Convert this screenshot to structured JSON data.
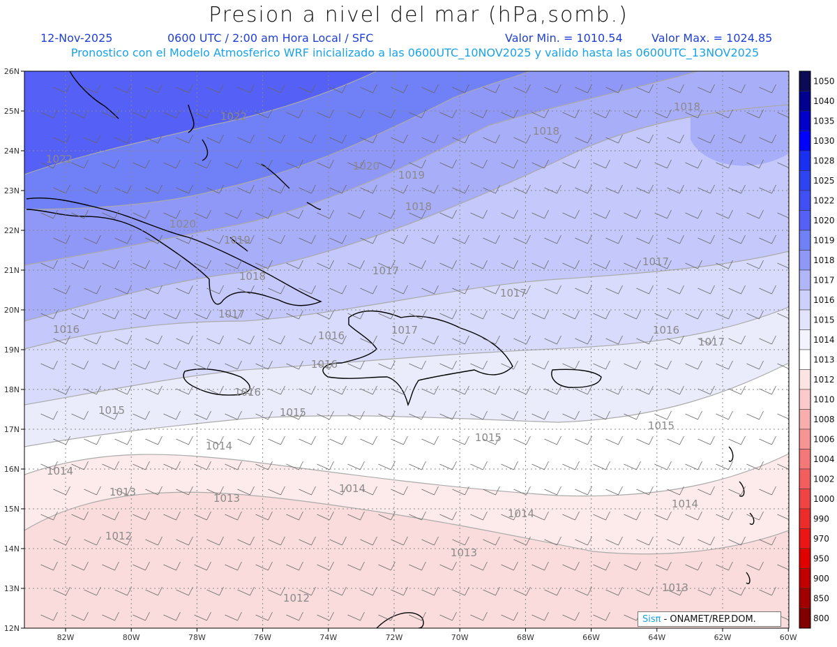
{
  "header": {
    "title": "Presion a nivel del mar (hPa,somb.)",
    "date": "12-Nov-2025",
    "time_info": "0600 UTC / 2:00 am Hora Local / SFC",
    "min_value": "Valor Min. = 1010.54",
    "max_value": "Valor Max. = 1024.85",
    "description": "Pronostico con el Modelo Atmosferico WRF inicializado a las 0600UTC_10NOV2025 y valido hasta las  0600UTC_13NOV2025"
  },
  "axes": {
    "lat_labels": [
      "26N",
      "25N",
      "24N",
      "23N",
      "22N",
      "21N",
      "20N",
      "19N",
      "18N",
      "17N",
      "16N",
      "15N",
      "14N",
      "13N",
      "12N"
    ],
    "lon_labels": [
      "82W",
      "80W",
      "78W",
      "76W",
      "74W",
      "72W",
      "70W",
      "68W",
      "66W",
      "64W",
      "62W",
      "60W"
    ]
  },
  "colorbar": {
    "levels": [
      "1050",
      "1040",
      "1035",
      "1030",
      "1028",
      "1025",
      "1022",
      "1020",
      "1019",
      "1018",
      "1017",
      "1016",
      "1015",
      "1014",
      "1013",
      "1012",
      "1010",
      "1008",
      "1006",
      "1004",
      "1002",
      "1000",
      "990",
      "970",
      "950",
      "900",
      "850",
      "800"
    ],
    "colors": [
      "#0a0a55",
      "#00008e",
      "#0000c8",
      "#0000ff",
      "#1a30f0",
      "#2e44f2",
      "#4050f4",
      "#5560f6",
      "#7080f6",
      "#9098f7",
      "#b0b6f8",
      "#ccd0fa",
      "#e2e4fb",
      "#f2f3fd",
      "#ffffff",
      "#fde4e4",
      "#fccaca",
      "#f9aeae",
      "#f79494",
      "#f47878",
      "#f25e5e",
      "#ef4444",
      "#ec2b2b",
      "#ea1515",
      "#e00000",
      "#c00000",
      "#a00000",
      "#800000"
    ]
  },
  "contours": [
    {
      "label": "1022",
      "color": "#5560f6"
    },
    {
      "label": "1020",
      "color": "#7080f6"
    },
    {
      "label": "1019",
      "color": "#9098f7"
    },
    {
      "label": "1018",
      "color": "#a8aef8"
    },
    {
      "label": "1017",
      "color": "#c4c8fa"
    },
    {
      "label": "1016",
      "color": "#d8dbfb"
    },
    {
      "label": "1015",
      "color": "#eaecfc"
    },
    {
      "label": "1014",
      "color": "#ffffff"
    },
    {
      "label": "1013",
      "color": "#fdeaea"
    },
    {
      "label": "1012",
      "color": "#fbdcdc"
    }
  ],
  "contour_labels": [
    {
      "text": "1022"
    },
    {
      "text": "1022"
    },
    {
      "text": "1020"
    },
    {
      "text": "1020"
    },
    {
      "text": "1019"
    },
    {
      "text": "1019"
    },
    {
      "text": "1018"
    },
    {
      "text": "1018"
    },
    {
      "text": "1018"
    },
    {
      "text": "1018"
    },
    {
      "text": "1017"
    },
    {
      "text": "1017"
    },
    {
      "text": "1017"
    },
    {
      "text": "1017"
    },
    {
      "text": "1017"
    },
    {
      "text": "1017"
    },
    {
      "text": "1016"
    },
    {
      "text": "1016"
    },
    {
      "text": "1016"
    },
    {
      "text": "1016"
    },
    {
      "text": "1016"
    },
    {
      "text": "1015"
    },
    {
      "text": "1015"
    },
    {
      "text": "1015"
    },
    {
      "text": "1015"
    },
    {
      "text": "1014"
    },
    {
      "text": "1014"
    },
    {
      "text": "1014"
    },
    {
      "text": "1014"
    },
    {
      "text": "1014"
    },
    {
      "text": "1013"
    },
    {
      "text": "1013"
    },
    {
      "text": "1013"
    },
    {
      "text": "1013"
    },
    {
      "text": "1012"
    },
    {
      "text": "1012"
    }
  ],
  "credit": {
    "brand": "Sisπ",
    "text": " - ONAMET/REP.DOM."
  }
}
